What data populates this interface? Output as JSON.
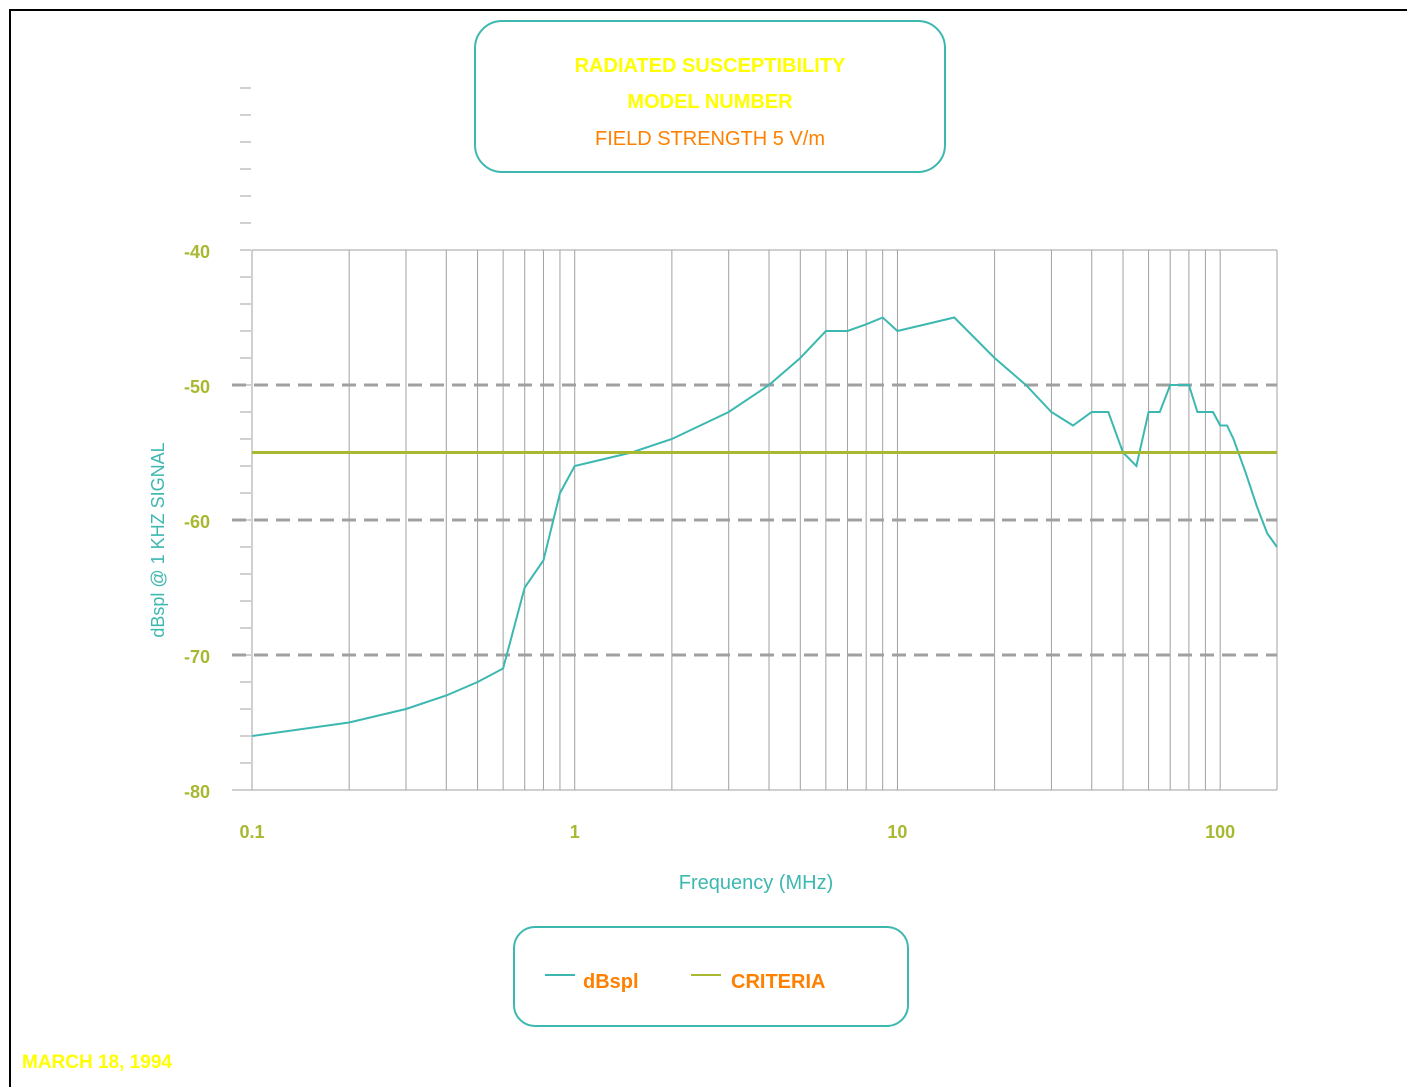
{
  "title": {
    "line1": "RADIATED SUSCEPTIBILITY",
    "line2": "MODEL NUMBER",
    "line3": "FIELD STRENGTH 5 V/m"
  },
  "legend": {
    "series1": "dBspl",
    "series2": "CRITERIA"
  },
  "date": "MARCH 18, 1994",
  "colors": {
    "series": "#3cb8b0",
    "criteria": "#a8b830",
    "tick_labels": "#a8b830",
    "axis_title": "#3cb8b0",
    "grid": "#a0a0a0"
  },
  "chart_data": {
    "type": "line",
    "xlabel": "Frequency (MHz)",
    "ylabel": "dBspl @ 1 KHZ SIGNAL",
    "xscale": "log",
    "xlim": [
      0.1,
      150
    ],
    "ylim": [
      -80,
      -40
    ],
    "xticks": [
      "0.1",
      "1",
      "10",
      "100"
    ],
    "yticks": [
      "-40",
      "-50",
      "-60",
      "-70",
      "-80"
    ],
    "dashed_lines_y": [
      -50,
      -60,
      -70
    ],
    "series": [
      {
        "name": "dBspl",
        "x": [
          0.1,
          0.2,
          0.3,
          0.4,
          0.5,
          0.6,
          0.7,
          0.8,
          0.9,
          1,
          1.5,
          2,
          3,
          4,
          5,
          6,
          7,
          8,
          9,
          10,
          15,
          20,
          25,
          30,
          35,
          40,
          45,
          50,
          55,
          60,
          65,
          70,
          75,
          80,
          85,
          90,
          95,
          100,
          105,
          110,
          120,
          130,
          140,
          150
        ],
        "y": [
          -76,
          -75,
          -74,
          -73,
          -72,
          -71,
          -65,
          -63,
          -58,
          -56,
          -55,
          -54,
          -52,
          -50,
          -48,
          -46,
          -46,
          -45.5,
          -45,
          -46,
          -45,
          -48,
          -50,
          -52,
          -53,
          -52,
          -52,
          -55,
          -56,
          -52,
          -52,
          -50,
          -50,
          -50,
          -52,
          -52,
          -52,
          -53,
          -53,
          -54,
          -56.5,
          -59,
          -61,
          -62
        ]
      },
      {
        "name": "CRITERIA",
        "x": [
          0.1,
          150
        ],
        "y": [
          -55,
          -55
        ]
      }
    ]
  }
}
